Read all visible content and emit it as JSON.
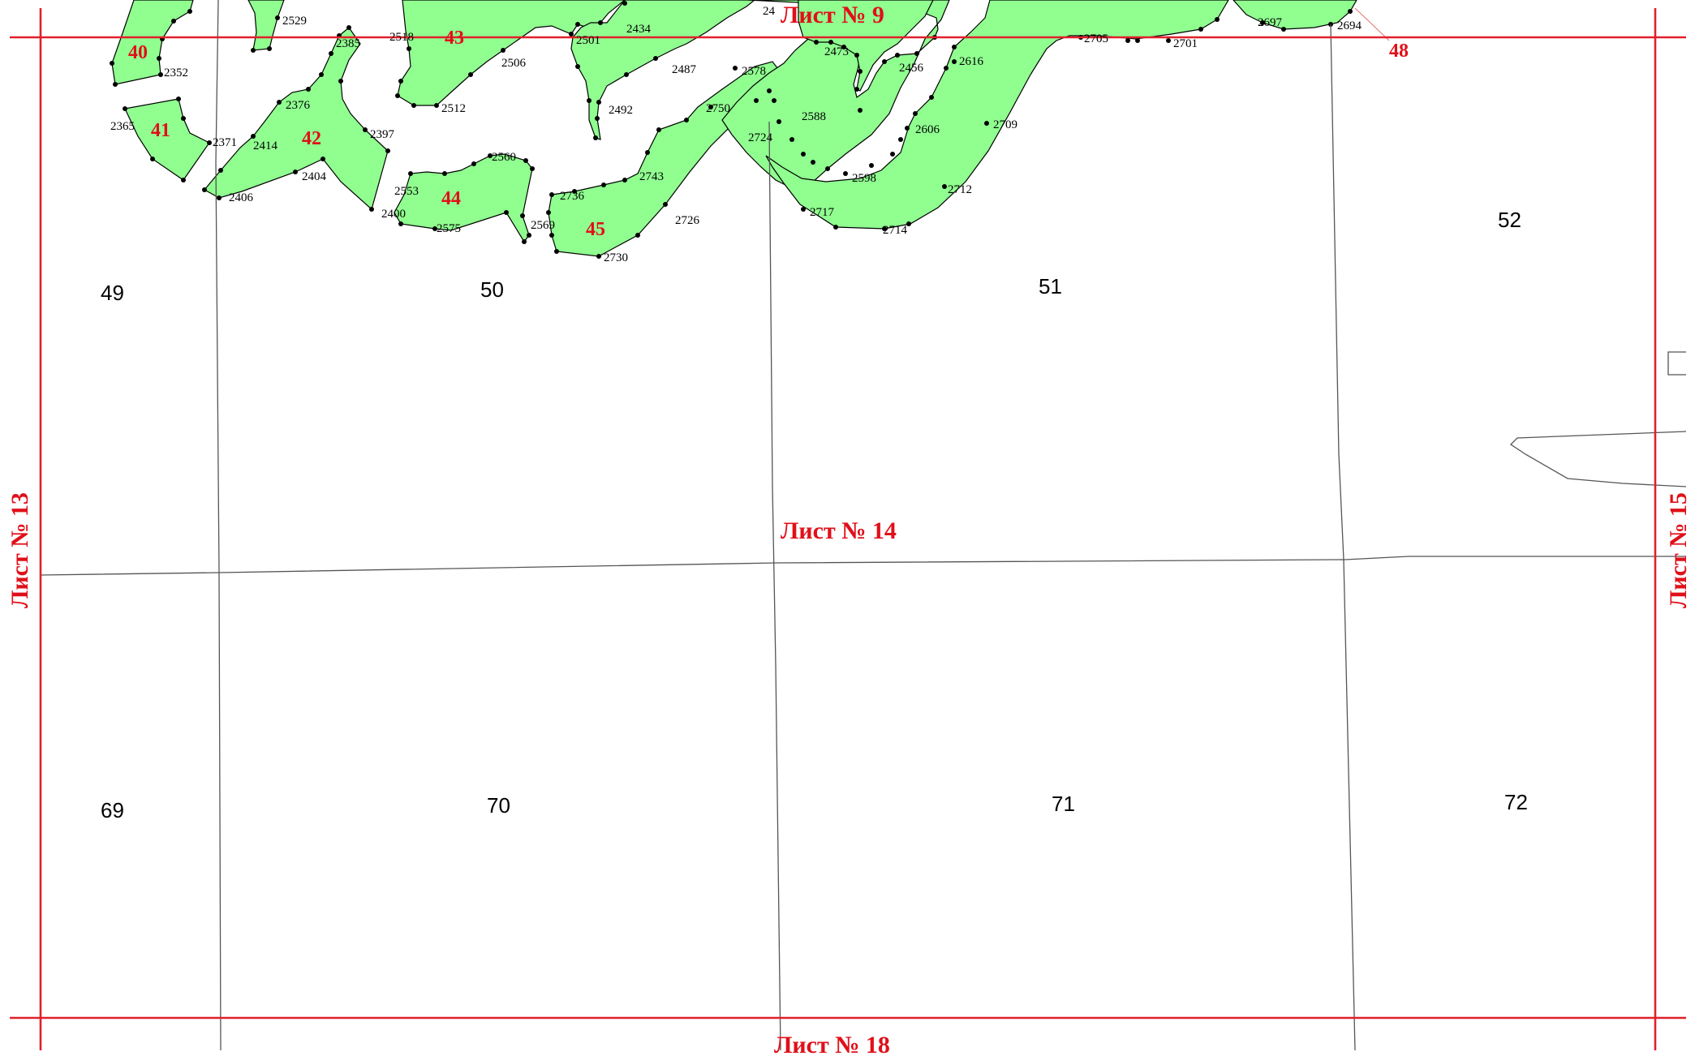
{
  "sheets": {
    "top": "Лист № 9",
    "center": "Лист № 14",
    "bottom": "Лист № 18",
    "left": "Лист № 13",
    "right": "Лист № 15"
  },
  "zones": [
    "40",
    "41",
    "42",
    "43",
    "44",
    "45",
    "48"
  ],
  "plots": [
    "49",
    "50",
    "51",
    "52",
    "69",
    "70",
    "71",
    "72"
  ],
  "points": [
    "2529",
    "2352",
    "2365",
    "2371",
    "2376",
    "2385",
    "2414",
    "2397",
    "2404",
    "2406",
    "2518",
    "2501",
    "2434",
    "2506",
    "2512",
    "2487",
    "2492",
    "2560",
    "2553",
    "2400",
    "2575",
    "2569",
    "2736",
    "2743",
    "2730",
    "2726",
    "2750",
    "2578",
    "2724",
    "2588",
    "2598",
    "2717",
    "2714",
    "2473",
    "2456",
    "2616",
    "2606",
    "2709",
    "2712",
    "2705",
    "2701",
    "2697",
    "2694",
    "24"
  ],
  "colors": {
    "zone_fill": "#90ff90",
    "sheet_lines": "#e0202a",
    "sheet_text": "#e0101a"
  }
}
